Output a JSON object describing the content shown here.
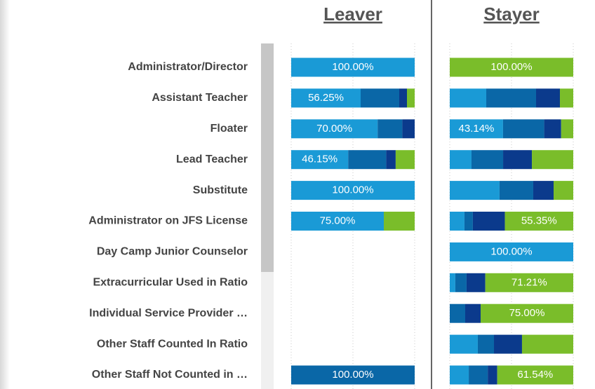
{
  "chart_data": {
    "type": "stacked_bar",
    "categories": [
      "Administrator/Director",
      "Assistant Teacher",
      "Floater",
      "Lead Teacher",
      "Substitute",
      "Administrator on JFS License",
      "Day Camp Junior Counselor",
      "Extracurricular Used in Ratio",
      "Individual Service Provider …",
      "Other Staff Counted In Ratio",
      "Other Staff Not Counted in …"
    ],
    "xlim": [
      0,
      100
    ],
    "xticks": [
      0,
      50,
      100
    ],
    "grid": true,
    "panels": [
      {
        "title": "Leaver",
        "series": [
          {
            "color": "#1a9ad6",
            "values": [
              100,
              56.25,
              70,
              46.15,
              100,
              75,
              null,
              null,
              null,
              null,
              null
            ],
            "value_labels": [
              "100.00%",
              "56.25%",
              "70.00%",
              "46.15%",
              "100.00%",
              "75.00%",
              null,
              null,
              null,
              null,
              null
            ]
          },
          {
            "color": "#0a67a7",
            "values": [
              null,
              31.25,
              20,
              30.77,
              null,
              null,
              null,
              null,
              null,
              null,
              100
            ],
            "value_labels": [
              null,
              null,
              null,
              null,
              null,
              null,
              null,
              null,
              null,
              null,
              "100.00%"
            ]
          },
          {
            "color": "#0b3a8c",
            "values": [
              null,
              6.25,
              10,
              7.69,
              null,
              null,
              null,
              null,
              null,
              null,
              null
            ]
          },
          {
            "color": "#7abd2a",
            "values": [
              null,
              6.25,
              null,
              15.38,
              null,
              25,
              null,
              null,
              null,
              null,
              null
            ]
          }
        ]
      },
      {
        "title": "Stayer",
        "series": [
          {
            "color": "#1a9ad6",
            "values": [
              null,
              29.55,
              43.14,
              17.6,
              40.3,
              11.9,
              100,
              4.5,
              null,
              22.7,
              15.38
            ],
            "value_labels": [
              null,
              null,
              "43.14%",
              null,
              null,
              null,
              "100.00%",
              null,
              null,
              null,
              null
            ]
          },
          {
            "color": "#0a67a7",
            "values": [
              null,
              40.34,
              33.33,
              25.6,
              27.3,
              6.8,
              null,
              9.1,
              12.5,
              13.1,
              15.38
            ]
          },
          {
            "color": "#0b3a8c",
            "values": [
              null,
              19.32,
              13.73,
              23.3,
              16.5,
              25.95,
              null,
              15.19,
              12.5,
              22.7,
              7.69
            ]
          },
          {
            "color": "#7abd2a",
            "values": [
              100,
              10.8,
              9.8,
              33.5,
              15.9,
              55.35,
              null,
              71.21,
              75,
              41.5,
              61.54
            ],
            "value_labels": [
              "100.00%",
              null,
              null,
              null,
              null,
              "55.35%",
              null,
              "71.21%",
              "75.00%",
              null,
              "61.54%"
            ]
          }
        ]
      }
    ]
  }
}
